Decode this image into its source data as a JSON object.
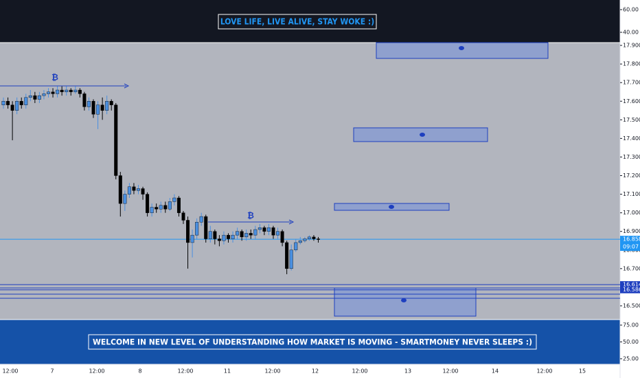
{
  "chart_data": {
    "type": "candlestick",
    "title": "LOVE LIFE, LIVE ALIVE, STAY WOKE :)",
    "footer_text": "WELCOME IN NEW LEVEL OF UNDERSTANDING HOW MARKET IS MOVING - SMARTMONEY NEVER SLEEPS :)",
    "up_color": "#4a8fe0",
    "down_color": "#000000",
    "open": [
      17.58,
      17.6,
      17.58,
      17.55,
      17.6,
      17.58,
      17.62,
      17.63,
      17.61,
      17.63,
      17.64,
      17.65,
      17.64,
      17.66,
      17.65,
      17.66,
      17.65,
      17.66,
      17.64,
      17.57,
      17.6,
      17.53,
      17.58,
      17.55,
      17.6,
      17.58,
      17.2,
      17.05,
      17.1,
      17.14,
      17.12,
      17.13,
      17.1,
      17.0,
      17.03,
      17.02,
      17.04,
      17.02,
      17.06,
      17.08,
      17.0,
      16.96,
      16.84,
      16.88,
      16.95,
      16.98,
      16.86,
      16.9,
      16.86,
      16.85,
      16.88,
      16.86,
      16.88,
      16.9,
      16.87,
      16.89,
      16.88,
      16.91,
      16.92,
      16.9,
      16.92,
      16.88,
      16.9,
      16.84,
      16.7,
      16.8,
      16.84,
      16.85,
      16.86,
      16.87,
      16.86
    ],
    "high": [
      17.62,
      17.62,
      17.6,
      17.62,
      17.62,
      17.64,
      17.66,
      17.65,
      17.65,
      17.66,
      17.67,
      17.67,
      17.68,
      17.68,
      17.68,
      17.67,
      17.68,
      17.67,
      17.65,
      17.62,
      17.61,
      17.6,
      17.62,
      17.63,
      17.61,
      17.59,
      17.22,
      17.12,
      17.16,
      17.16,
      17.15,
      17.14,
      17.11,
      17.05,
      17.05,
      17.06,
      17.06,
      17.08,
      17.1,
      17.09,
      17.01,
      16.98,
      16.91,
      16.97,
      17.0,
      16.99,
      16.93,
      16.91,
      16.88,
      16.9,
      16.89,
      16.9,
      16.92,
      16.91,
      16.91,
      16.91,
      16.93,
      16.94,
      16.93,
      16.94,
      16.93,
      16.92,
      16.91,
      16.85,
      16.83,
      16.86,
      16.87,
      16.87,
      16.88,
      16.88,
      16.87
    ],
    "low": [
      17.56,
      17.56,
      17.39,
      17.53,
      17.56,
      17.56,
      17.6,
      17.59,
      17.59,
      17.61,
      17.62,
      17.62,
      17.62,
      17.63,
      17.63,
      17.63,
      17.64,
      17.62,
      17.55,
      17.55,
      17.51,
      17.45,
      17.5,
      17.53,
      17.55,
      17.18,
      16.98,
      17.01,
      17.08,
      17.1,
      17.1,
      17.07,
      16.98,
      16.98,
      17.0,
      17.0,
      17.0,
      17.01,
      17.04,
      16.98,
      16.94,
      16.7,
      16.76,
      16.86,
      16.93,
      16.84,
      16.84,
      16.83,
      16.82,
      16.83,
      16.84,
      16.84,
      16.86,
      16.85,
      16.85,
      16.86,
      16.86,
      16.89,
      16.88,
      16.88,
      16.86,
      16.86,
      16.82,
      16.67,
      16.69,
      16.79,
      16.83,
      16.84,
      16.85,
      16.85,
      16.84
    ],
    "close": [
      17.6,
      17.58,
      17.55,
      17.6,
      17.58,
      17.62,
      17.63,
      17.61,
      17.63,
      17.64,
      17.65,
      17.64,
      17.66,
      17.65,
      17.66,
      17.65,
      17.66,
      17.64,
      17.57,
      17.6,
      17.53,
      17.58,
      17.55,
      17.6,
      17.58,
      17.2,
      17.05,
      17.1,
      17.14,
      17.12,
      17.13,
      17.1,
      17.0,
      17.03,
      17.02,
      17.04,
      17.02,
      17.06,
      17.08,
      17.0,
      16.96,
      16.84,
      16.88,
      16.95,
      16.98,
      16.86,
      16.9,
      16.86,
      16.85,
      16.88,
      16.86,
      16.88,
      16.9,
      16.87,
      16.89,
      16.88,
      16.91,
      16.92,
      16.9,
      16.92,
      16.88,
      16.9,
      16.84,
      16.7,
      16.8,
      16.84,
      16.85,
      16.86,
      16.87,
      16.86,
      16.858
    ],
    "ylim": [
      16.426,
      17.915
    ],
    "yticks": [
      {
        "value": 17.9,
        "label": "17.900"
      },
      {
        "value": 17.8,
        "label": "17.800"
      },
      {
        "value": 17.7,
        "label": "17.700"
      },
      {
        "value": 17.6,
        "label": "17.600"
      },
      {
        "value": 17.5,
        "label": "17.500"
      },
      {
        "value": 17.4,
        "label": "17.400"
      },
      {
        "value": 17.3,
        "label": "17.300"
      },
      {
        "value": 17.2,
        "label": "17.200"
      },
      {
        "value": 17.1,
        "label": "17.100"
      },
      {
        "value": 17.0,
        "label": "17.000"
      },
      {
        "value": 16.9,
        "label": "16.900"
      },
      {
        "value": 16.8,
        "label": "16.800"
      },
      {
        "value": 16.7,
        "label": "16.700"
      },
      {
        "value": 16.5,
        "label": "16.500"
      }
    ],
    "x_labels": [
      "12:00",
      "7",
      "12:00",
      "8",
      "12:00",
      "11",
      "12:00",
      "12",
      "12:00",
      "13",
      "12:00",
      "14",
      "12:00",
      "15"
    ],
    "price_lines": [
      {
        "value": 16.858,
        "label": "16.858",
        "color": "#2196f3"
      },
      {
        "value": 16.614,
        "label": "16.614",
        "color": "#1e3fbf"
      },
      {
        "value": 16.586,
        "label": "16.586",
        "color": "#1e3fbf"
      }
    ],
    "countdown": "09:07",
    "marker_symbol": "₿",
    "top_pane": {
      "ylim": [
        30.9,
        68.5
      ],
      "yticks": [
        {
          "value": 60,
          "label": "60.00"
        },
        {
          "value": 40,
          "label": "40.00"
        }
      ]
    },
    "bottom_pane": {
      "ylim": [
        16.8,
        83.2
      ],
      "yticks": [
        {
          "value": 75,
          "label": "75.00"
        },
        {
          "value": 50,
          "label": "50.00"
        },
        {
          "value": 25,
          "label": "25.00"
        }
      ]
    }
  }
}
